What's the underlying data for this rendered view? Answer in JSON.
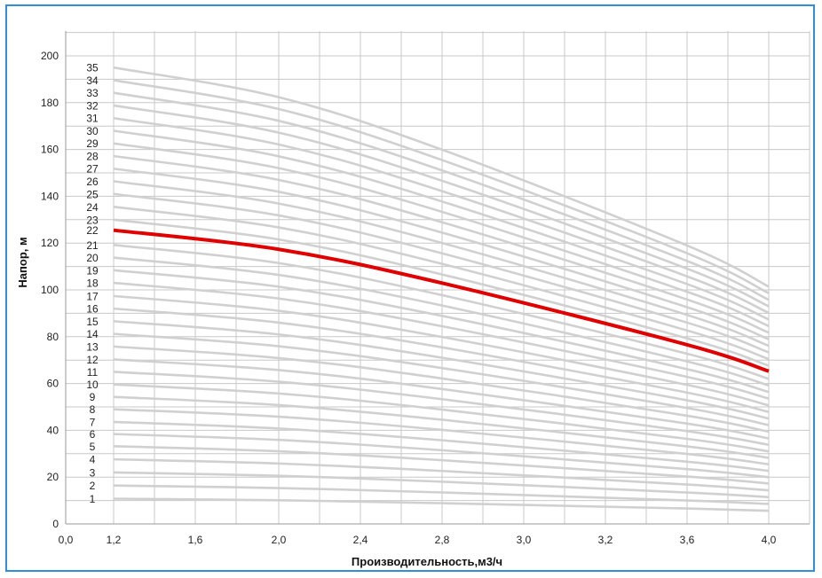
{
  "chart_data": {
    "type": "line",
    "title": "",
    "xlabel": "Производительность,м3/ч",
    "ylabel": "Напор, м",
    "xlim": [
      0.0,
      4.0
    ],
    "ylim": [
      0,
      200
    ],
    "x_ticks": [
      "0,0",
      "1,2",
      "1,6",
      "2,0",
      "2,4",
      "2,8",
      "3,0",
      "3,2",
      "3,6",
      "4,0"
    ],
    "x_tick_values": [
      0.0,
      1.2,
      1.6,
      2.0,
      2.4,
      2.8,
      3.0,
      3.2,
      3.6,
      4.0
    ],
    "y_ticks": [
      "0",
      "20",
      "40",
      "60",
      "80",
      "100",
      "120",
      "140",
      "160",
      "180",
      "200"
    ],
    "y_tick_values": [
      0,
      20,
      40,
      60,
      80,
      100,
      120,
      140,
      160,
      180,
      200
    ],
    "grid": true,
    "x": [
      1.2,
      2.0,
      2.8,
      3.6,
      4.0
    ],
    "curve_shape": [
      1.0,
      0.935,
      0.82,
      0.61,
      0.52
    ],
    "curve_labels": [
      "1",
      "2",
      "3",
      "4",
      "5",
      "6",
      "7",
      "8",
      "9",
      "10",
      "11",
      "12",
      "13",
      "14",
      "15",
      "16",
      "17",
      "18",
      "19",
      "20",
      "21",
      "22",
      "23",
      "24",
      "25",
      "26",
      "27",
      "28",
      "29",
      "30",
      "31",
      "32",
      "33",
      "34",
      "35"
    ],
    "curve_heads_at_1_2": [
      10.8,
      16.4,
      22.0,
      27.6,
      33.2,
      38.4,
      43.6,
      49.0,
      54.3,
      59.6,
      65.0,
      70.3,
      75.8,
      81.2,
      86.6,
      92.0,
      97.4,
      103.0,
      108.4,
      113.8,
      119.2,
      125.5,
      130.0,
      135.5,
      141.0,
      146.4,
      151.8,
      157.2,
      162.6,
      168.0,
      173.4,
      178.8,
      184.2,
      189.6,
      195.0
    ],
    "highlight_index": 21,
    "colors": {
      "curves": "#d0d0d0",
      "highlight": "#e00000",
      "grid": "#c8c8c8",
      "frame": "#2f8fd8"
    }
  }
}
